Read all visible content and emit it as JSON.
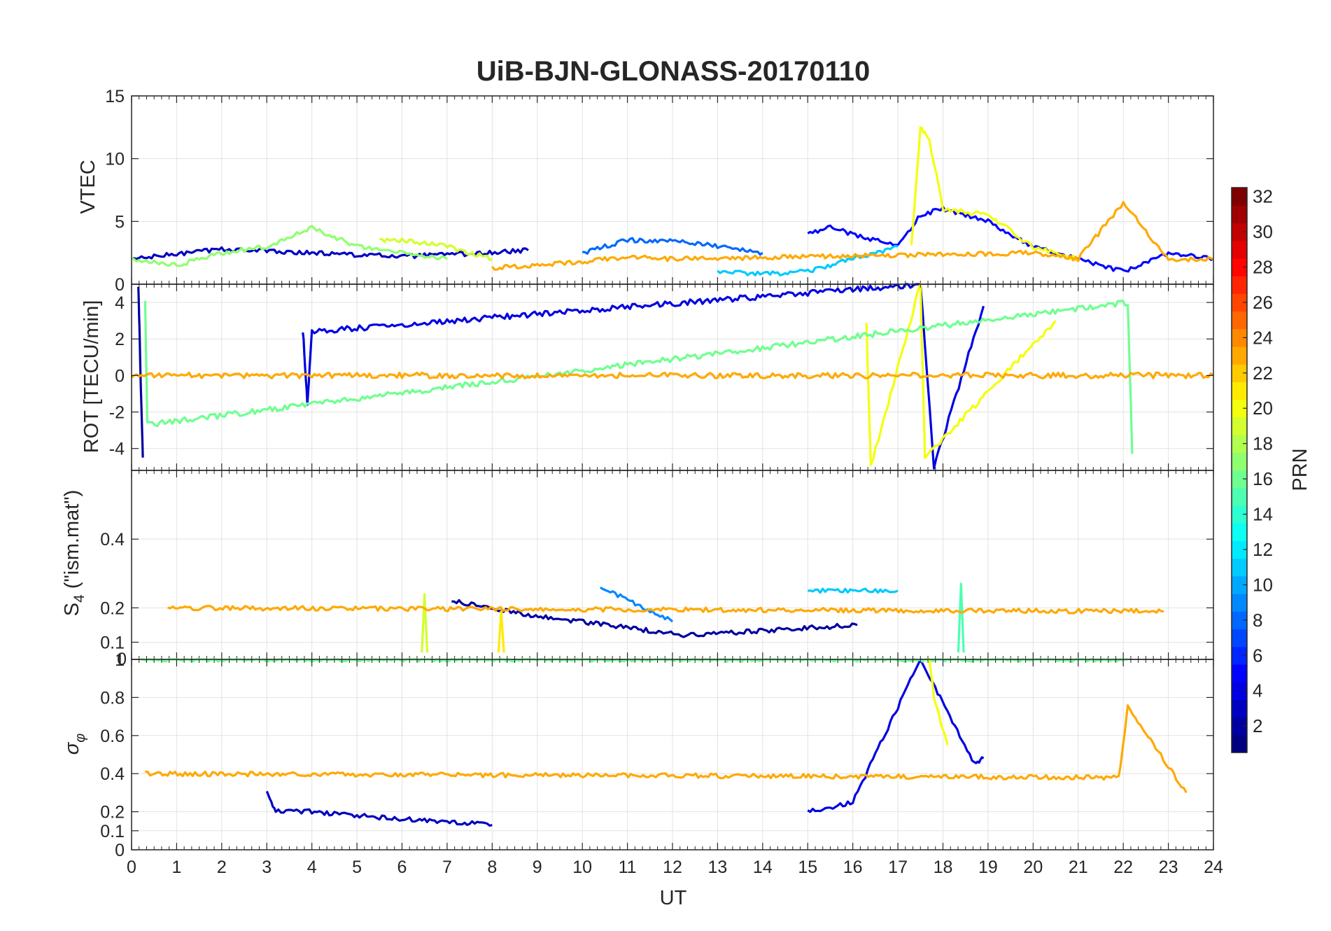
{
  "chart_data": [
    {
      "type": "line",
      "panel": "VTEC",
      "title": "UiB-BJN-GLONASS-20170110",
      "ylabel": "VTEC",
      "xlabel": "UT",
      "xlim": [
        0,
        24
      ],
      "ylim": [
        0,
        15
      ],
      "yticks": [
        0,
        5,
        10,
        15
      ],
      "series": [
        {
          "name": "PRN 3",
          "prn": 3,
          "x": [
            0,
            2,
            4,
            6,
            8,
            8.8
          ],
          "y": [
            2,
            2.8,
            2.5,
            2.2,
            2.5,
            2.7
          ]
        },
        {
          "name": "PRN 5",
          "prn": 5,
          "x": [
            15,
            15.5,
            16,
            16.5,
            17,
            17.5,
            18,
            19,
            20,
            21,
            22,
            23,
            24
          ],
          "y": [
            4,
            4.5,
            4,
            3.5,
            3,
            5.5,
            6,
            5,
            3,
            2,
            1,
            2.5,
            2
          ]
        },
        {
          "name": "PRN 8",
          "prn": 8,
          "x": [
            10,
            11,
            12,
            13,
            14
          ],
          "y": [
            2.5,
            3.5,
            3.5,
            3,
            2.5
          ]
        },
        {
          "name": "PRN 11",
          "prn": 11,
          "x": [
            13,
            14,
            15,
            16,
            17
          ],
          "y": [
            1,
            0.8,
            1,
            2,
            3
          ]
        },
        {
          "name": "PRN 17",
          "prn": 17,
          "x": [
            0,
            1,
            2,
            3,
            4,
            5,
            6,
            7
          ],
          "y": [
            2,
            1.5,
            2.5,
            3,
            4.5,
            3,
            2.5,
            2
          ]
        },
        {
          "name": "PRN 19",
          "prn": 19,
          "x": [
            5.5,
            6,
            7,
            8
          ],
          "y": [
            3.5,
            3.5,
            3,
            2
          ]
        },
        {
          "name": "PRN 20",
          "prn": 20,
          "x": [
            17.3,
            17.5,
            17.7,
            18,
            19,
            20,
            21
          ],
          "y": [
            3,
            12.5,
            11.5,
            6,
            5.5,
            3,
            2
          ]
        },
        {
          "name": "PRN 23",
          "prn": 23,
          "x": [
            8,
            9,
            10,
            11,
            12,
            20,
            21,
            22,
            23,
            24
          ],
          "y": [
            1.3,
            1.5,
            1.8,
            2.2,
            2,
            2.5,
            2,
            6.5,
            2,
            2
          ]
        }
      ]
    },
    {
      "type": "line",
      "panel": "ROT",
      "ylabel": "ROT [TECU/min]",
      "xlim": [
        0,
        24
      ],
      "ylim": [
        -5.2,
        5
      ],
      "yticks": [
        -4,
        -2,
        0,
        2,
        4
      ],
      "series": [
        {
          "name": "PRN 2",
          "prn": 2,
          "x": [
            0.15,
            0.2,
            0.25
          ],
          "y": [
            5,
            0,
            -4.5
          ]
        },
        {
          "name": "PRN 4",
          "prn": 4,
          "x": [
            3.8,
            3.9,
            4,
            17.5,
            17.8,
            18.9
          ],
          "y": [
            2.5,
            -1.5,
            2.4,
            5,
            -5,
            3.8
          ]
        },
        {
          "name": "PRN 20",
          "prn": 20,
          "x": [
            16.3,
            16.4,
            17.5,
            17.6,
            20.5
          ],
          "y": [
            3,
            -5,
            5,
            -4.5,
            3
          ]
        },
        {
          "name": "PRN 16",
          "prn": 16,
          "x": [
            0.3,
            0.35,
            22.1,
            22.2
          ],
          "y": [
            4.2,
            -2.7,
            4,
            -4.3
          ]
        },
        {
          "name": "PRN 23",
          "prn": 23,
          "x": [
            0,
            6,
            12,
            18,
            24
          ],
          "y": [
            0,
            0,
            0,
            0,
            0
          ]
        }
      ]
    },
    {
      "type": "line",
      "panel": "S4",
      "ylabel": "S₄ (\"ism.mat\")",
      "xlim": [
        0,
        24
      ],
      "ylim": [
        0.05,
        0.6
      ],
      "yticks": [
        0.1,
        0.2,
        0.4
      ],
      "series": [
        {
          "name": "PRN 2",
          "prn": 2,
          "x": [
            7.1,
            8.8,
            12.3,
            16.1
          ],
          "y": [
            0.22,
            0.18,
            0.12,
            0.15
          ]
        },
        {
          "name": "PRN 9",
          "prn": 9,
          "x": [
            10.4,
            12.0
          ],
          "y": [
            0.26,
            0.16
          ]
        },
        {
          "name": "PRN 11",
          "prn": 11,
          "x": [
            15.0,
            17.0
          ],
          "y": [
            0.25,
            0.25
          ]
        },
        {
          "name": "PRN 15",
          "prn": 15,
          "x": [
            18.4
          ],
          "y": [
            0.27
          ]
        },
        {
          "name": "PRN 19",
          "prn": 19,
          "x": [
            6.5
          ],
          "y": [
            0.24
          ]
        },
        {
          "name": "PRN 21",
          "prn": 21,
          "x": [
            8.2
          ],
          "y": [
            0.19
          ]
        },
        {
          "name": "PRN 23",
          "prn": 23,
          "x": [
            0.8,
            22.9
          ],
          "y": [
            0.2,
            0.19
          ]
        }
      ]
    },
    {
      "type": "line",
      "panel": "sigma_phi",
      "ylabel": "σφ",
      "xlim": [
        0,
        24
      ],
      "ylim": [
        0,
        1
      ],
      "yticks": [
        0,
        0.1,
        0.2,
        0.4,
        0.6,
        0.8,
        1
      ],
      "series": [
        {
          "name": "PRN 3",
          "prn": 3,
          "x": [
            3,
            3.2,
            4,
            5,
            6,
            7,
            8
          ],
          "y": [
            0.3,
            0.2,
            0.2,
            0.18,
            0.16,
            0.15,
            0.13
          ]
        },
        {
          "name": "PRN 4",
          "prn": 4,
          "x": [
            15,
            16,
            17.5,
            18.7,
            18.9
          ],
          "y": [
            0.2,
            0.25,
            1,
            0.45,
            0.48
          ]
        },
        {
          "name": "PRN 16",
          "prn": 16,
          "x": [
            0.2,
            22.1
          ],
          "y": [
            1,
            1
          ]
        },
        {
          "name": "PRN 20",
          "prn": 20,
          "x": [
            17.7,
            17.8,
            18.1
          ],
          "y": [
            1,
            0.8,
            0.55
          ]
        },
        {
          "name": "PRN 23",
          "prn": 23,
          "x": [
            0.3,
            21.9,
            22.1,
            23.4
          ],
          "y": [
            0.4,
            0.38,
            0.75,
            0.3
          ]
        }
      ]
    }
  ],
  "figure": {
    "title": "UiB-BJN-GLONASS-20170110",
    "xlabel": "UT",
    "xticks": [
      "0",
      "1",
      "2",
      "3",
      "4",
      "5",
      "6",
      "7",
      "8",
      "9",
      "10",
      "11",
      "12",
      "13",
      "14",
      "15",
      "16",
      "17",
      "18",
      "19",
      "20",
      "21",
      "22",
      "23",
      "24"
    ],
    "panel_ylabels": {
      "vtec": "VTEC",
      "rot": "ROT [TECU/min]",
      "s4_main": "S",
      "s4_sub": "4",
      "s4_rest": " (\"ism.mat\")",
      "sig_main": "σ",
      "sig_sub": "φ"
    },
    "ytick_labels": {
      "vtec": [
        "0",
        "5",
        "10",
        "15"
      ],
      "rot": [
        "-4",
        "-2",
        "0",
        "2",
        "4"
      ],
      "s4": [
        "0.1",
        "0.2",
        "0.4"
      ],
      "s4_top_overlap": "0",
      "sig": [
        "0",
        "0.1",
        "0.2",
        "0.4",
        "0.6",
        "0.8",
        "1"
      ]
    }
  },
  "colorbar": {
    "label": "PRN",
    "min": 1,
    "max": 32,
    "ticks": [
      "2",
      "4",
      "6",
      "8",
      "10",
      "12",
      "14",
      "16",
      "18",
      "20",
      "22",
      "24",
      "26",
      "28",
      "30",
      "32"
    ],
    "colormap": "jet"
  }
}
